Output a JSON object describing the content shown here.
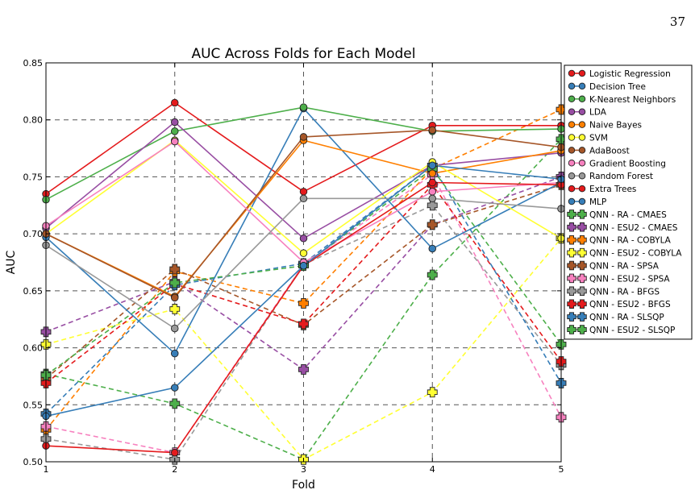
{
  "page_number": "37",
  "chart_data": {
    "type": "line",
    "title": "AUC Across Folds for Each Model",
    "xlabel": "Fold",
    "ylabel": "AUC",
    "x": [
      1,
      2,
      3,
      4,
      5
    ],
    "xlim": [
      1,
      5
    ],
    "ylim": [
      0.5,
      0.85
    ],
    "x_ticks": [
      "1",
      "2",
      "3",
      "4",
      "5"
    ],
    "y_ticks": [
      "0.50",
      "0.55",
      "0.60",
      "0.65",
      "0.70",
      "0.75",
      "0.80",
      "0.85"
    ],
    "grid": true,
    "legend_position": "right",
    "series": [
      {
        "name": "Logistic Regression",
        "color": "#e41a1c",
        "marker": "circle",
        "dash": false,
        "values": [
          0.735,
          0.815,
          0.737,
          0.795,
          0.795
        ]
      },
      {
        "name": "Decision Tree",
        "color": "#377eb8",
        "marker": "circle",
        "dash": false,
        "values": [
          0.697,
          0.595,
          0.81,
          0.687,
          0.745
        ]
      },
      {
        "name": "K-Nearest Neighbors",
        "color": "#4daf4a",
        "marker": "circle",
        "dash": false,
        "values": [
          0.73,
          0.79,
          0.811,
          0.79,
          0.792
        ]
      },
      {
        "name": "LDA",
        "color": "#984ea3",
        "marker": "circle",
        "dash": false,
        "values": [
          0.705,
          0.798,
          0.696,
          0.76,
          0.771
        ]
      },
      {
        "name": "Naive Bayes",
        "color": "#ff7f00",
        "marker": "circle",
        "dash": false,
        "values": [
          0.7,
          0.645,
          0.782,
          0.753,
          0.773
        ]
      },
      {
        "name": "SVM",
        "color": "#ffff33",
        "marker": "circle",
        "dash": false,
        "values": [
          0.7,
          0.782,
          0.683,
          0.763,
          0.696
        ]
      },
      {
        "name": "AdaBoost",
        "color": "#a65628",
        "marker": "circle",
        "dash": false,
        "values": [
          0.7,
          0.644,
          0.785,
          0.791,
          0.776
        ]
      },
      {
        "name": "Gradient Boosting",
        "color": "#f781bf",
        "marker": "circle",
        "dash": false,
        "values": [
          0.707,
          0.781,
          0.675,
          0.737,
          0.745
        ]
      },
      {
        "name": "Random Forest",
        "color": "#999999",
        "marker": "circle",
        "dash": false,
        "values": [
          0.69,
          0.617,
          0.731,
          0.731,
          0.722
        ]
      },
      {
        "name": "Extra Trees",
        "color": "#e41a1c",
        "marker": "circle",
        "dash": false,
        "values": [
          0.514,
          0.508,
          0.672,
          0.745,
          0.743
        ]
      },
      {
        "name": "MLP",
        "color": "#377eb8",
        "marker": "circle",
        "dash": false,
        "values": [
          0.54,
          0.565,
          0.672,
          0.76,
          0.748
        ]
      },
      {
        "name": "QNN - RA - CMAES",
        "color": "#4daf4a",
        "marker": "plus",
        "dash": true,
        "values": [
          0.577,
          0.551,
          0.502,
          0.664,
          0.783
        ]
      },
      {
        "name": "QNN - ESU2 - CMAES",
        "color": "#984ea3",
        "marker": "plus",
        "dash": true,
        "values": [
          0.614,
          0.658,
          0.581,
          0.708,
          0.75
        ]
      },
      {
        "name": "QNN - RA - COBYLA",
        "color": "#ff7f00",
        "marker": "plus",
        "dash": true,
        "values": [
          0.528,
          0.667,
          0.639,
          0.757,
          0.809
        ]
      },
      {
        "name": "QNN - ESU2 - COBYLA",
        "color": "#ffff33",
        "marker": "plus",
        "dash": true,
        "values": [
          0.603,
          0.634,
          0.502,
          0.561,
          0.696
        ]
      },
      {
        "name": "QNN - RA - SPSA",
        "color": "#a65628",
        "marker": "plus",
        "dash": true,
        "values": [
          0.573,
          0.669,
          0.62,
          0.708,
          0.743
        ]
      },
      {
        "name": "QNN - ESU2 - SPSA",
        "color": "#f781bf",
        "marker": "plus",
        "dash": true,
        "values": [
          0.531,
          0.508,
          0.673,
          0.752,
          0.539
        ]
      },
      {
        "name": "QNN - RA - BFGS",
        "color": "#999999",
        "marker": "plus",
        "dash": true,
        "values": [
          0.52,
          0.502,
          0.673,
          0.725,
          0.585
        ]
      },
      {
        "name": "QNN - ESU2 - BFGS",
        "color": "#e41a1c",
        "marker": "plus",
        "dash": true,
        "values": [
          0.569,
          0.656,
          0.621,
          0.743,
          0.588
        ]
      },
      {
        "name": "QNN - RA - SLSQP",
        "color": "#377eb8",
        "marker": "plus",
        "dash": true,
        "values": [
          0.542,
          0.655,
          0.674,
          0.76,
          0.569
        ]
      },
      {
        "name": "QNN - ESU2 - SLSQP",
        "color": "#4daf4a",
        "marker": "plus",
        "dash": true,
        "values": [
          0.576,
          0.657,
          0.672,
          0.757,
          0.603
        ]
      }
    ]
  }
}
